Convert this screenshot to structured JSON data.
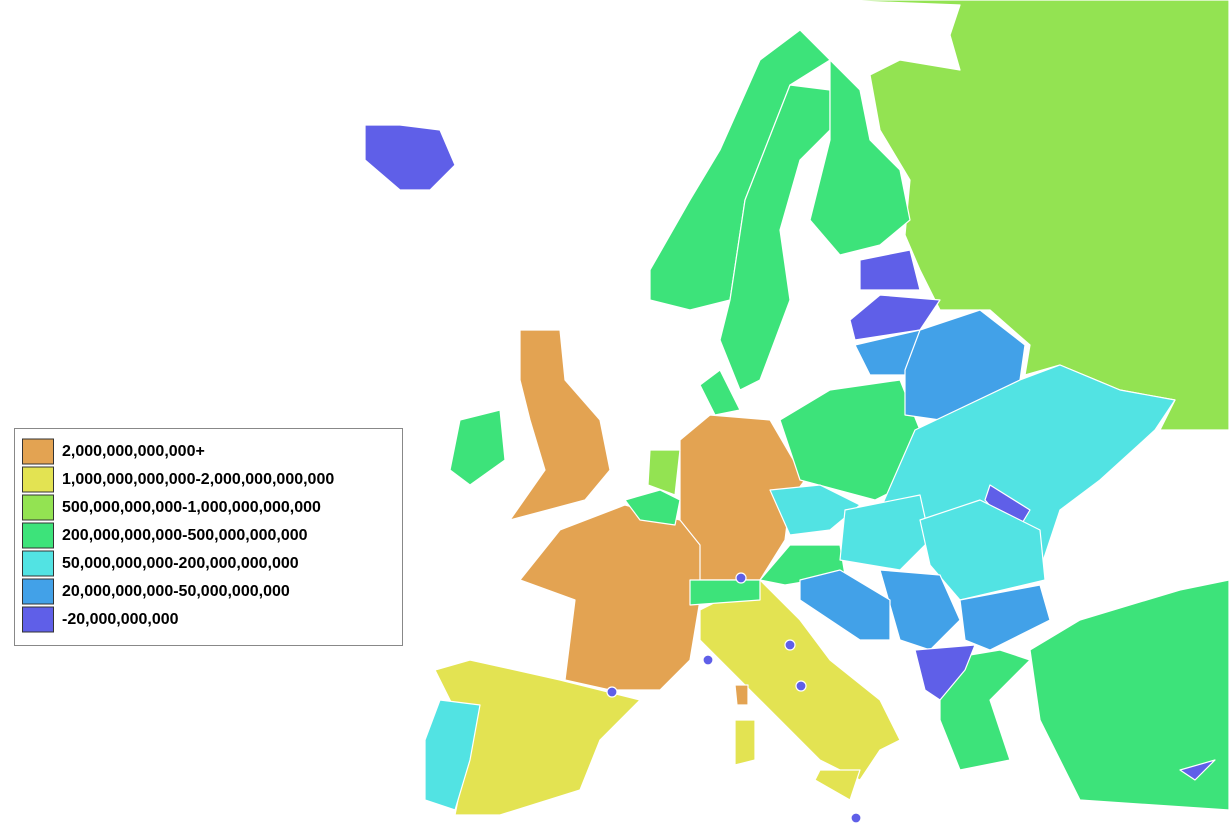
{
  "legend": {
    "items": [
      {
        "label": "2,000,000,000,000+",
        "color": "#e3a352"
      },
      {
        "label": "1,000,000,000,000-2,000,000,000,000",
        "color": "#e3e352"
      },
      {
        "label": "500,000,000,000-1,000,000,000,000",
        "color": "#93e352"
      },
      {
        "label": "200,000,000,000-500,000,000,000",
        "color": "#3de37a"
      },
      {
        "label": "50,000,000,000-200,000,000,000",
        "color": "#52e3e3"
      },
      {
        "label": "20,000,000,000-50,000,000,000",
        "color": "#42a1e8"
      },
      {
        "label": "-20,000,000,000",
        "color": "#5f5fe8"
      }
    ]
  }
}
